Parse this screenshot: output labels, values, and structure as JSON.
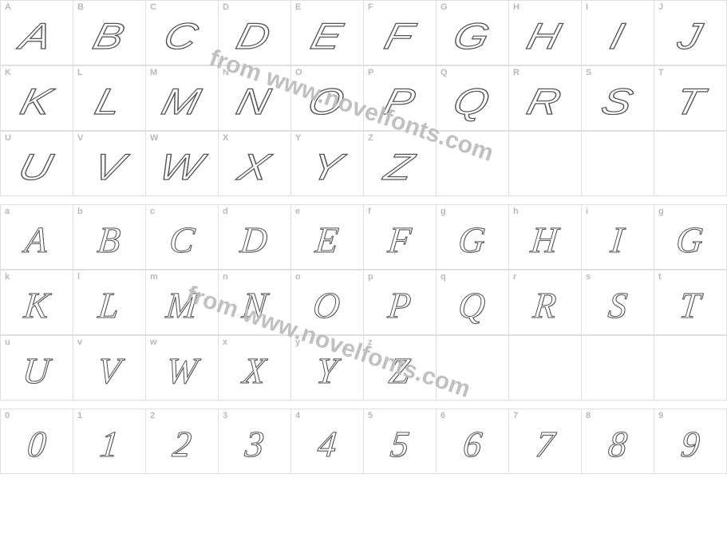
{
  "colors": {
    "grid_border": "#e0e0e0",
    "label_color": "#b9b9b9",
    "glyph_stroke": "#555555",
    "glyph_fill": "#ffffff",
    "watermark_color": "#bdbdbd",
    "background": "#ffffff"
  },
  "watermark_text": "from www.novelfonts.com",
  "rows": [
    {
      "type": "upper",
      "cells": [
        {
          "label": "A",
          "glyph": "A"
        },
        {
          "label": "B",
          "glyph": "B"
        },
        {
          "label": "C",
          "glyph": "C"
        },
        {
          "label": "D",
          "glyph": "D"
        },
        {
          "label": "E",
          "glyph": "E"
        },
        {
          "label": "F",
          "glyph": "F"
        },
        {
          "label": "G",
          "glyph": "G"
        },
        {
          "label": "H",
          "glyph": "H"
        },
        {
          "label": "I",
          "glyph": "I"
        },
        {
          "label": "J",
          "glyph": "J"
        }
      ]
    },
    {
      "type": "upper",
      "cells": [
        {
          "label": "K",
          "glyph": "K"
        },
        {
          "label": "L",
          "glyph": "L"
        },
        {
          "label": "M",
          "glyph": "M"
        },
        {
          "label": "N",
          "glyph": "N"
        },
        {
          "label": "O",
          "glyph": "O"
        },
        {
          "label": "P",
          "glyph": "P"
        },
        {
          "label": "Q",
          "glyph": "Q"
        },
        {
          "label": "R",
          "glyph": "R"
        },
        {
          "label": "S",
          "glyph": "S"
        },
        {
          "label": "T",
          "glyph": "T"
        }
      ]
    },
    {
      "type": "upper",
      "cells": [
        {
          "label": "U",
          "glyph": "U"
        },
        {
          "label": "V",
          "glyph": "V"
        },
        {
          "label": "W",
          "glyph": "W"
        },
        {
          "label": "X",
          "glyph": "X"
        },
        {
          "label": "Y",
          "glyph": "Y"
        },
        {
          "label": "Z",
          "glyph": "Z"
        },
        {
          "label": "",
          "glyph": ""
        },
        {
          "label": "",
          "glyph": ""
        },
        {
          "label": "",
          "glyph": ""
        },
        {
          "label": "",
          "glyph": ""
        }
      ]
    },
    {
      "type": "lower",
      "cells": [
        {
          "label": "a",
          "glyph": "A"
        },
        {
          "label": "b",
          "glyph": "B"
        },
        {
          "label": "c",
          "glyph": "C"
        },
        {
          "label": "d",
          "glyph": "D"
        },
        {
          "label": "e",
          "glyph": "E"
        },
        {
          "label": "f",
          "glyph": "F"
        },
        {
          "label": "g",
          "glyph": "G"
        },
        {
          "label": "h",
          "glyph": "H"
        },
        {
          "label": "i",
          "glyph": "I"
        },
        {
          "label": "g",
          "glyph": "G"
        }
      ]
    },
    {
      "type": "lower",
      "cells": [
        {
          "label": "k",
          "glyph": "K"
        },
        {
          "label": "l",
          "glyph": "L"
        },
        {
          "label": "m",
          "glyph": "M"
        },
        {
          "label": "n",
          "glyph": "N"
        },
        {
          "label": "o",
          "glyph": "O"
        },
        {
          "label": "p",
          "glyph": "P"
        },
        {
          "label": "q",
          "glyph": "Q"
        },
        {
          "label": "r",
          "glyph": "R"
        },
        {
          "label": "s",
          "glyph": "S"
        },
        {
          "label": "t",
          "glyph": "T"
        }
      ]
    },
    {
      "type": "lower",
      "cells": [
        {
          "label": "u",
          "glyph": "U"
        },
        {
          "label": "v",
          "glyph": "V"
        },
        {
          "label": "w",
          "glyph": "W"
        },
        {
          "label": "x",
          "glyph": "X"
        },
        {
          "label": "y",
          "glyph": "Y"
        },
        {
          "label": "z",
          "glyph": "Z"
        },
        {
          "label": "",
          "glyph": ""
        },
        {
          "label": "",
          "glyph": ""
        },
        {
          "label": "",
          "glyph": ""
        },
        {
          "label": "",
          "glyph": ""
        }
      ]
    },
    {
      "type": "digit",
      "cells": [
        {
          "label": "0",
          "glyph": "0"
        },
        {
          "label": "1",
          "glyph": "1"
        },
        {
          "label": "2",
          "glyph": "2"
        },
        {
          "label": "3",
          "glyph": "3"
        },
        {
          "label": "4",
          "glyph": "4"
        },
        {
          "label": "5",
          "glyph": "5"
        },
        {
          "label": "6",
          "glyph": "6"
        },
        {
          "label": "7",
          "glyph": "7"
        },
        {
          "label": "8",
          "glyph": "8"
        },
        {
          "label": "9",
          "glyph": "9"
        }
      ]
    }
  ]
}
